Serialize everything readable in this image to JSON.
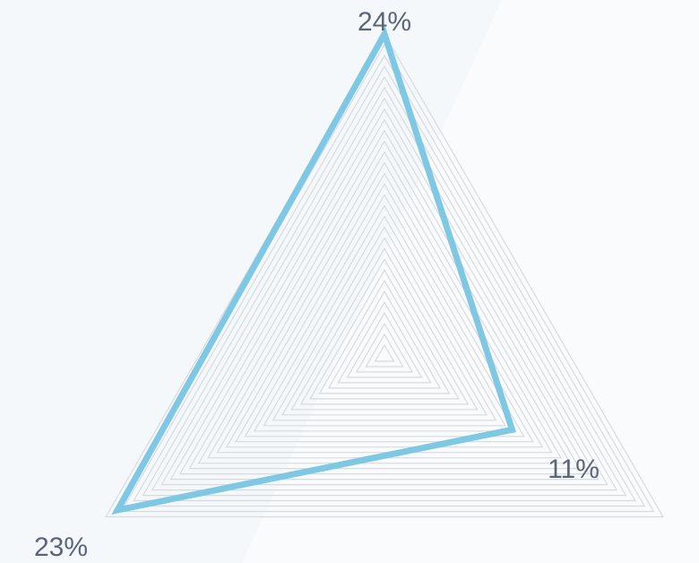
{
  "chart_data": {
    "type": "radar",
    "axes": 3,
    "values": [
      24,
      11,
      23
    ],
    "value_labels": [
      "24%",
      "11%",
      "23%"
    ],
    "max": 24,
    "grid_rings": 30,
    "colors": {
      "series": "#7ec8e3",
      "grid": "#d8dbde",
      "label": "#5c6478",
      "background": "#f4f8fb",
      "background_band": "#f9fbfd"
    }
  }
}
